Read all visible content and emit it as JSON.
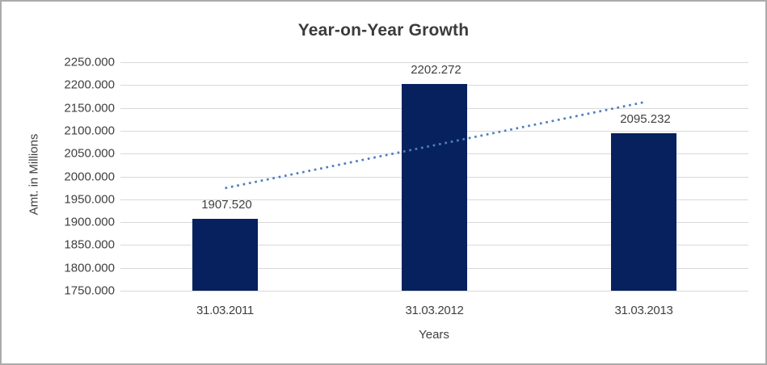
{
  "chart_data": {
    "type": "bar",
    "title": "Year-on-Year Growth",
    "xlabel": "Years",
    "ylabel": "Amt. in Millions",
    "categories": [
      "31.03.2011",
      "31.03.2012",
      "31.03.2013"
    ],
    "values": [
      1907.52,
      2202.272,
      2095.232
    ],
    "data_labels": [
      "1907.520",
      "2202.272",
      "2095.232"
    ],
    "ylim": [
      1750,
      2250
    ],
    "y_tick_step": 50,
    "y_tick_labels": [
      "2250.000",
      "2200.000",
      "2150.000",
      "2100.000",
      "2050.000",
      "2000.000",
      "1950.000",
      "1900.000",
      "1850.000",
      "1800.000",
      "1750.000"
    ],
    "grid": true,
    "legend": false,
    "trendline": {
      "type": "linear",
      "style": "dotted",
      "start": {
        "category_index": 0,
        "value": 1974.5
      },
      "end": {
        "category_index": 2,
        "value": 2162.2
      }
    },
    "colors": {
      "bar": "#07215E",
      "trendline": "#4E7FC0",
      "gridline": "#D9D9D9",
      "text": "#404040",
      "title": "#3B3B3B"
    }
  }
}
